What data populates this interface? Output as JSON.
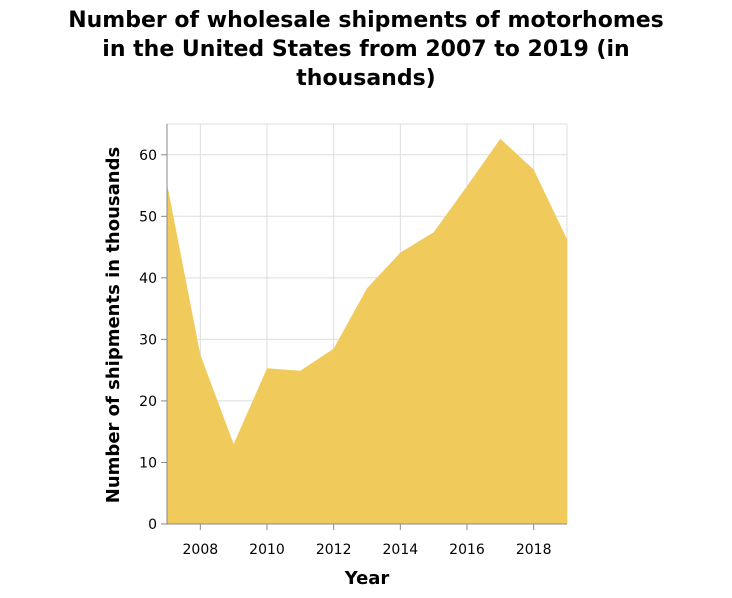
{
  "chart_data": {
    "type": "area",
    "title_lines": [
      "Number of wholesale shipments of motorhomes",
      "in the United States from 2007 to 2019 (in",
      "thousands)"
    ],
    "xlabel": "Year",
    "ylabel": "Number of shipments in thousands",
    "x": [
      2007,
      2008,
      2009,
      2010,
      2011,
      2012,
      2013,
      2014,
      2015,
      2016,
      2017,
      2018,
      2019
    ],
    "values": [
      55.3,
      27.5,
      13.0,
      25.3,
      24.9,
      28.5,
      38.3,
      44.1,
      47.4,
      54.9,
      62.6,
      57.6,
      46.3
    ],
    "x_ticks": [
      2008,
      2010,
      2012,
      2014,
      2016,
      2018
    ],
    "y_ticks": [
      0,
      10,
      20,
      30,
      40,
      50,
      60
    ],
    "xlim": [
      2007,
      2019
    ],
    "ylim": [
      0,
      65
    ],
    "grid": true,
    "colors": {
      "fill": "#f0cb5b",
      "grid": "#dddddd",
      "axis": "#888888"
    }
  }
}
